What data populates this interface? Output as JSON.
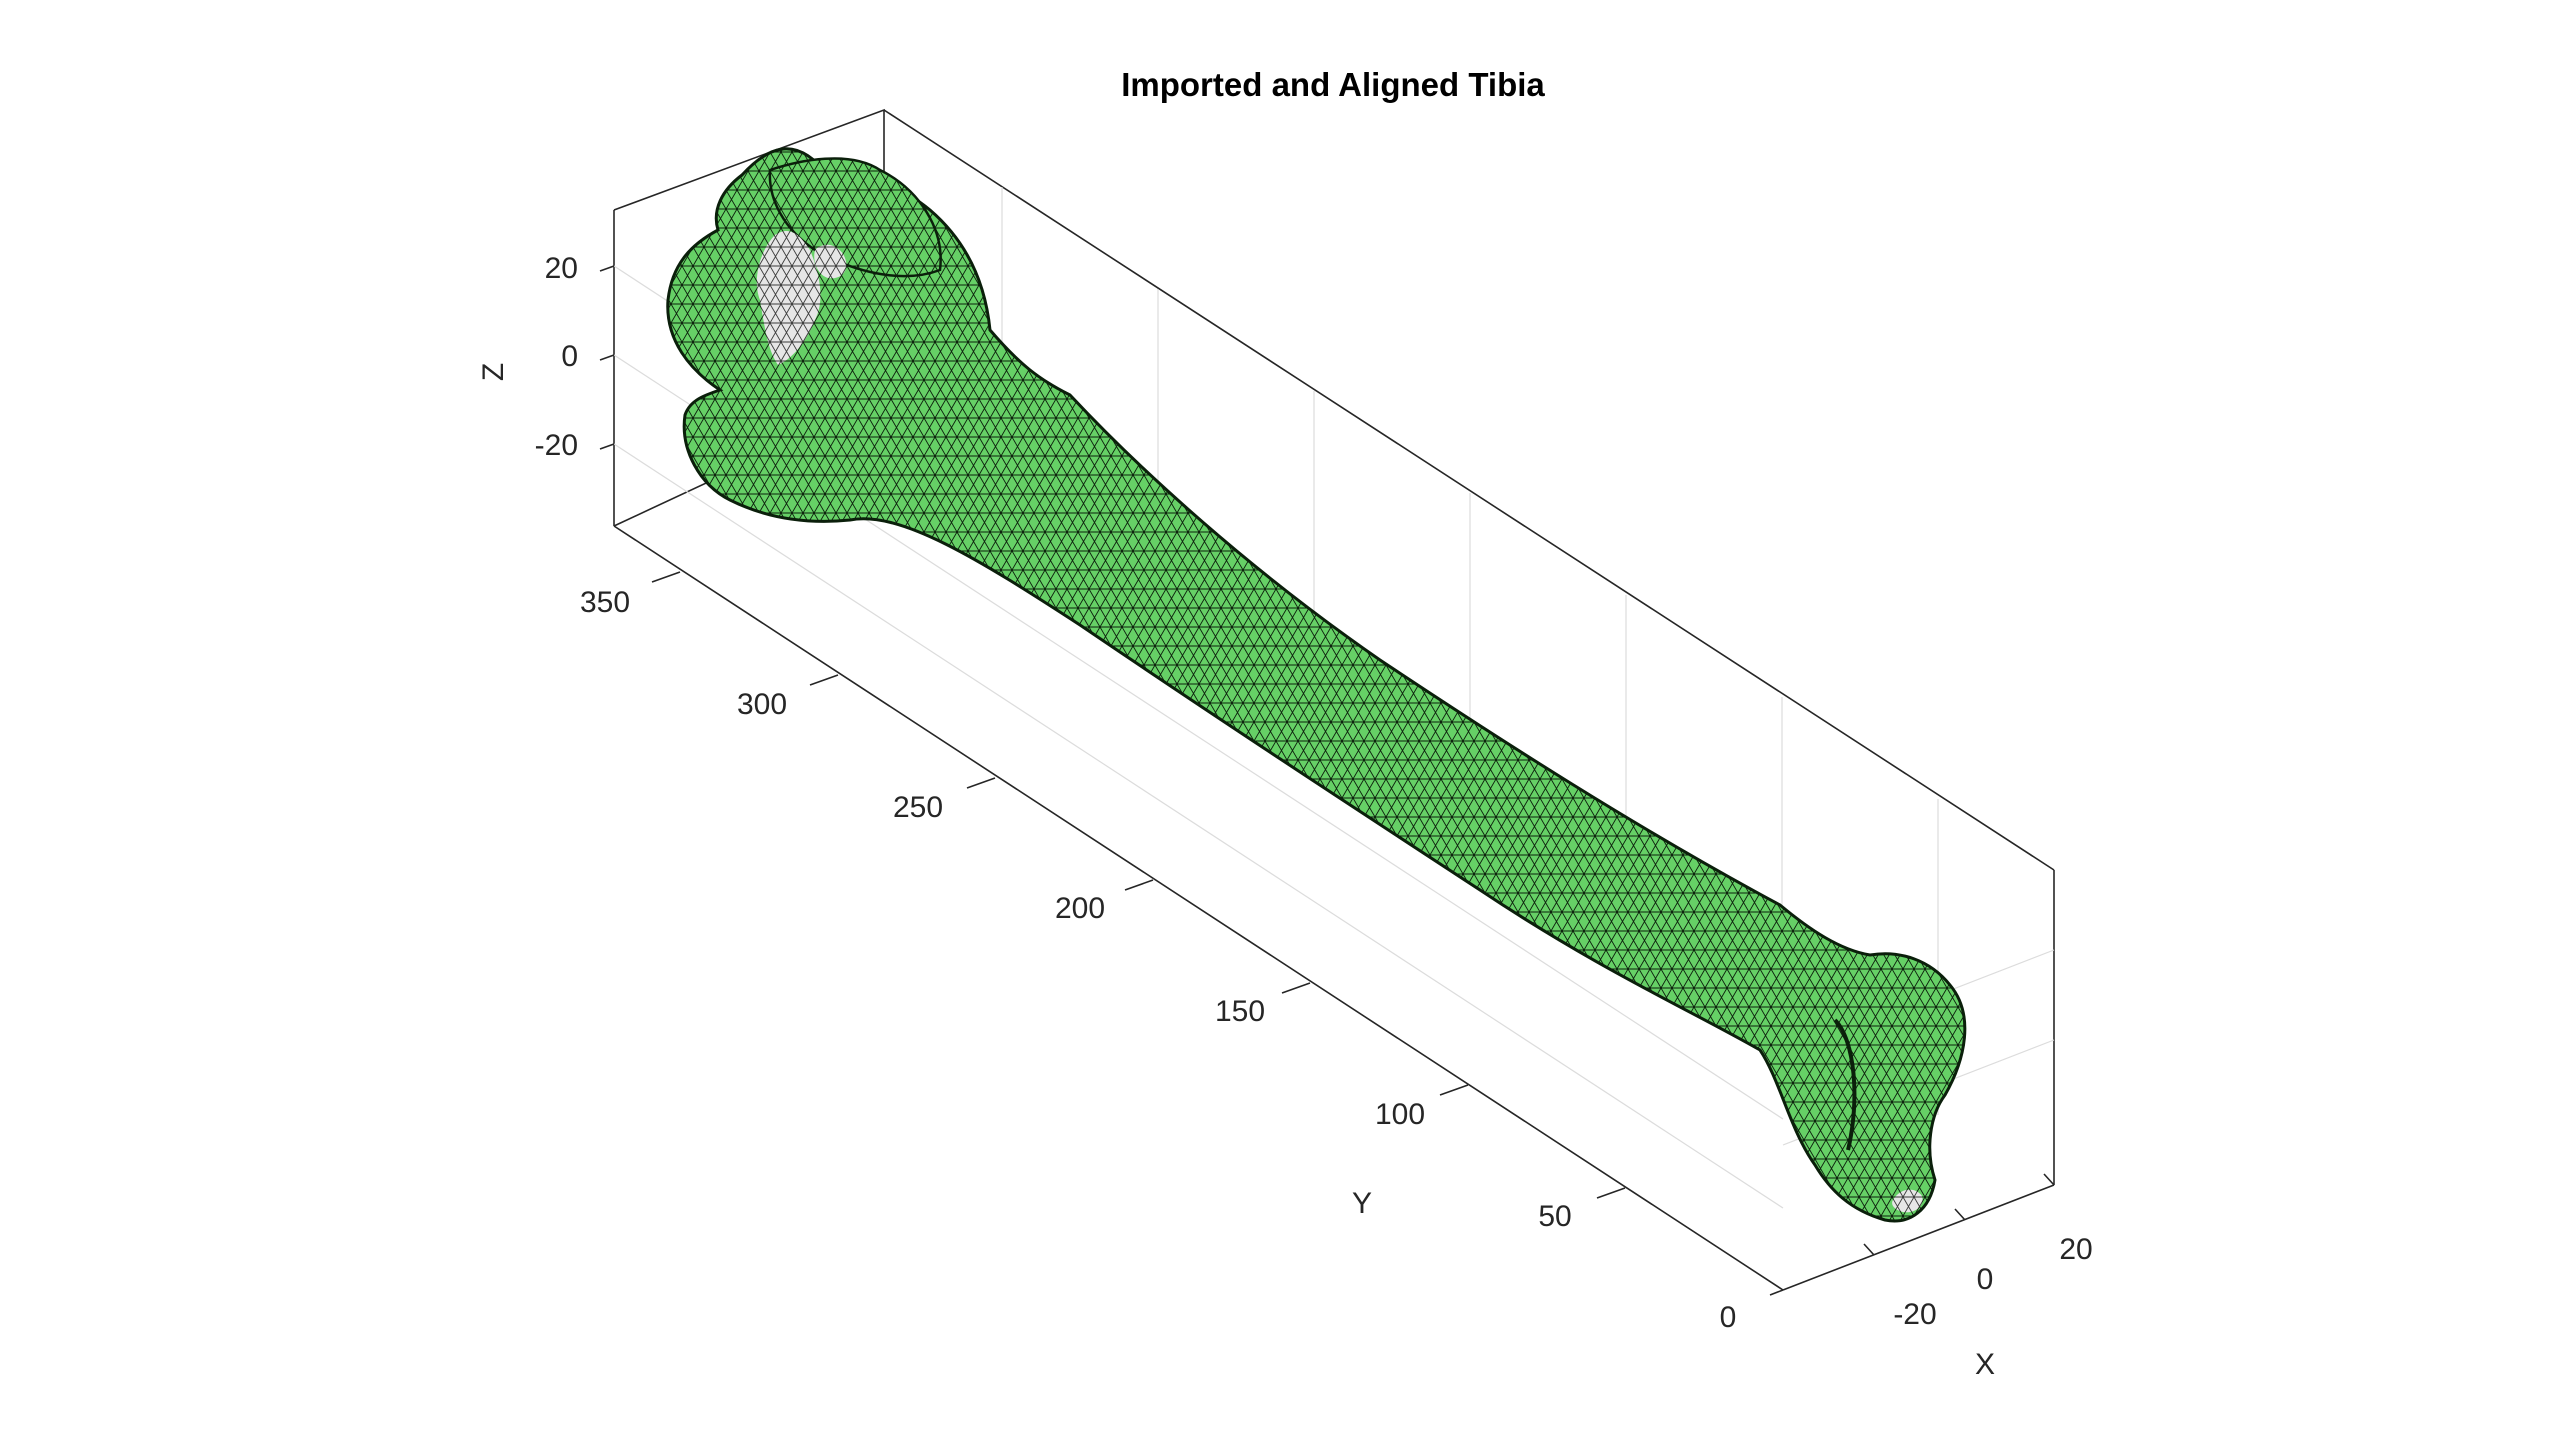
{
  "title": "Imported and Aligned Tibia",
  "axes": {
    "x": {
      "label": "X",
      "ticks": [
        "-20",
        "0",
        "20"
      ]
    },
    "y": {
      "label": "Y",
      "ticks": [
        "0",
        "50",
        "100",
        "150",
        "200",
        "250",
        "300",
        "350"
      ]
    },
    "z": {
      "label": "Z",
      "ticks": [
        "20",
        "0",
        "-20"
      ]
    }
  },
  "colors": {
    "mesh_face": "#66d066",
    "mesh_edge": "#0b1f0b",
    "highlight_patch": "#e6e6e6",
    "box": "#262626",
    "grid": "#dcdcdc"
  },
  "grid": true,
  "chart_data": {
    "type": "3d-surface-mesh",
    "title": "Imported and Aligned Tibia",
    "xlabel": "X",
    "ylabel": "Y",
    "zlabel": "Z",
    "x_ticks": [
      -20,
      0,
      20
    ],
    "y_ticks": [
      0,
      50,
      100,
      150,
      200,
      250,
      300,
      350
    ],
    "z_ticks": [
      -20,
      0,
      20
    ]
  }
}
